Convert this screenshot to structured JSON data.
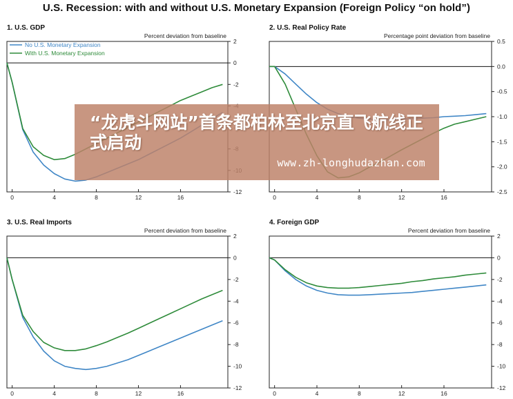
{
  "title": "U.S. Recession: with and without U.S. Monetary Expansion (Foreign Policy “on hold”)",
  "legend": {
    "no_expansion": "No U.S. Monetary Expansion",
    "with_expansion": "With U.S. Monetary Expansion"
  },
  "colors": {
    "no_expansion": "#3f86c6",
    "with_expansion": "#2e8b3a"
  },
  "watermark": {
    "headline": "“龙虎斗网站”首条都柏林至北京直飞航线正式启动",
    "url": "www.zh-longhudazhan.com"
  },
  "chart_data": [
    {
      "type": "line",
      "title": "1. U.S. GDP",
      "units": "Percent deviation from baseline",
      "xlim": [
        -0.5,
        20.5
      ],
      "ylim": [
        -12,
        2
      ],
      "x_ticks": [
        0,
        4,
        8,
        12,
        16
      ],
      "y_ticks": [
        2,
        0,
        -2,
        -4,
        -6,
        -8,
        -10,
        -12
      ],
      "legend": true,
      "series": [
        {
          "key": "no_expansion",
          "x": [
            -0.5,
            0,
            1,
            2,
            3,
            4,
            5,
            6,
            7,
            8,
            9,
            10,
            11,
            12,
            13,
            14,
            15,
            16,
            17,
            18,
            19,
            20
          ],
          "y": [
            0,
            -1.8,
            -6.2,
            -8.3,
            -9.5,
            -10.3,
            -10.8,
            -11.0,
            -10.9,
            -10.6,
            -10.2,
            -9.8,
            -9.4,
            -9.0,
            -8.5,
            -8.0,
            -7.5,
            -7.0,
            -6.4,
            -5.8,
            -5.2,
            -4.6
          ]
        },
        {
          "key": "with_expansion",
          "x": [
            -0.5,
            0,
            1,
            2,
            3,
            4,
            5,
            6,
            7,
            8,
            9,
            10,
            11,
            12,
            13,
            14,
            15,
            16,
            17,
            18,
            19,
            20
          ],
          "y": [
            0,
            -1.8,
            -6.1,
            -7.8,
            -8.6,
            -9.0,
            -8.9,
            -8.5,
            -8.0,
            -7.5,
            -7.0,
            -6.5,
            -6.0,
            -5.5,
            -5.0,
            -4.5,
            -4.0,
            -3.5,
            -3.1,
            -2.7,
            -2.3,
            -2.0
          ]
        }
      ]
    },
    {
      "type": "line",
      "title": "2. U.S. Real Policy Rate",
      "units": "Percentage point deviation from baseline",
      "xlim": [
        -0.5,
        20.5
      ],
      "ylim": [
        -2.5,
        0.5
      ],
      "x_ticks": [
        0,
        4,
        8,
        12,
        16
      ],
      "y_ticks": [
        0.5,
        0.0,
        -0.5,
        -1.0,
        -1.5,
        -2.0,
        -2.5
      ],
      "legend": false,
      "series": [
        {
          "key": "no_expansion",
          "x": [
            -0.5,
            0,
            1,
            2,
            3,
            4,
            5,
            6,
            7,
            8,
            9,
            10,
            11,
            12,
            13,
            14,
            15,
            16,
            17,
            18,
            19,
            20
          ],
          "y": [
            0,
            0,
            -0.15,
            -0.35,
            -0.55,
            -0.72,
            -0.85,
            -0.94,
            -1.0,
            -1.03,
            -1.05,
            -1.06,
            -1.06,
            -1.05,
            -1.04,
            -1.03,
            -1.02,
            -1.0,
            -0.99,
            -0.98,
            -0.96,
            -0.94
          ]
        },
        {
          "key": "with_expansion",
          "x": [
            -0.5,
            0,
            1,
            2,
            3,
            4,
            5,
            6,
            7,
            8,
            9,
            10,
            11,
            12,
            13,
            14,
            15,
            16,
            17,
            18,
            19,
            20
          ],
          "y": [
            0,
            0,
            -0.35,
            -0.85,
            -1.35,
            -1.78,
            -2.1,
            -2.22,
            -2.2,
            -2.12,
            -2.0,
            -1.9,
            -1.78,
            -1.66,
            -1.55,
            -1.44,
            -1.33,
            -1.23,
            -1.15,
            -1.1,
            -1.05,
            -1.0
          ]
        }
      ]
    },
    {
      "type": "line",
      "title": "3. U.S. Real Imports",
      "units": "Percent deviation from baseline",
      "xlim": [
        -0.5,
        20.5
      ],
      "ylim": [
        -12,
        2
      ],
      "x_ticks": [
        0,
        4,
        8,
        12,
        16
      ],
      "y_ticks": [
        2,
        0,
        -2,
        -4,
        -6,
        -8,
        -10,
        -12
      ],
      "legend": false,
      "series": [
        {
          "key": "no_expansion",
          "x": [
            -0.5,
            0,
            1,
            2,
            3,
            4,
            5,
            6,
            7,
            8,
            9,
            10,
            11,
            12,
            13,
            14,
            15,
            16,
            17,
            18,
            19,
            20
          ],
          "y": [
            0,
            -2.0,
            -5.5,
            -7.3,
            -8.6,
            -9.5,
            -10.0,
            -10.2,
            -10.3,
            -10.2,
            -10.0,
            -9.7,
            -9.4,
            -9.0,
            -8.6,
            -8.2,
            -7.8,
            -7.4,
            -7.0,
            -6.6,
            -6.2,
            -5.8
          ]
        },
        {
          "key": "with_expansion",
          "x": [
            -0.5,
            0,
            1,
            2,
            3,
            4,
            5,
            6,
            7,
            8,
            9,
            10,
            11,
            12,
            13,
            14,
            15,
            16,
            17,
            18,
            19,
            20
          ],
          "y": [
            0,
            -2.0,
            -5.3,
            -6.8,
            -7.8,
            -8.3,
            -8.55,
            -8.55,
            -8.4,
            -8.1,
            -7.75,
            -7.35,
            -6.95,
            -6.5,
            -6.05,
            -5.6,
            -5.15,
            -4.7,
            -4.25,
            -3.8,
            -3.4,
            -3.0
          ]
        }
      ]
    },
    {
      "type": "line",
      "title": "4. Foreign GDP",
      "units": "Percent deviation from baseline",
      "xlim": [
        -0.5,
        20.5
      ],
      "ylim": [
        -12,
        2
      ],
      "x_ticks": [
        0,
        4,
        8,
        12,
        16
      ],
      "y_ticks": [
        2,
        0,
        -2,
        -4,
        -6,
        -8,
        -10,
        -12
      ],
      "legend": false,
      "series": [
        {
          "key": "no_expansion",
          "x": [
            -0.5,
            0,
            1,
            2,
            3,
            4,
            5,
            6,
            7,
            8,
            9,
            10,
            11,
            12,
            13,
            14,
            15,
            16,
            17,
            18,
            19,
            20
          ],
          "y": [
            0,
            -0.2,
            -1.2,
            -2.0,
            -2.6,
            -3.0,
            -3.25,
            -3.4,
            -3.45,
            -3.45,
            -3.4,
            -3.35,
            -3.3,
            -3.25,
            -3.2,
            -3.1,
            -3.0,
            -2.9,
            -2.8,
            -2.7,
            -2.6,
            -2.5
          ]
        },
        {
          "key": "with_expansion",
          "x": [
            -0.5,
            0,
            1,
            2,
            3,
            4,
            5,
            6,
            7,
            8,
            9,
            10,
            11,
            12,
            13,
            14,
            15,
            16,
            17,
            18,
            19,
            20
          ],
          "y": [
            0,
            -0.2,
            -1.1,
            -1.8,
            -2.3,
            -2.6,
            -2.75,
            -2.8,
            -2.8,
            -2.75,
            -2.65,
            -2.55,
            -2.45,
            -2.35,
            -2.2,
            -2.1,
            -1.95,
            -1.85,
            -1.75,
            -1.6,
            -1.5,
            -1.4
          ]
        }
      ]
    }
  ]
}
